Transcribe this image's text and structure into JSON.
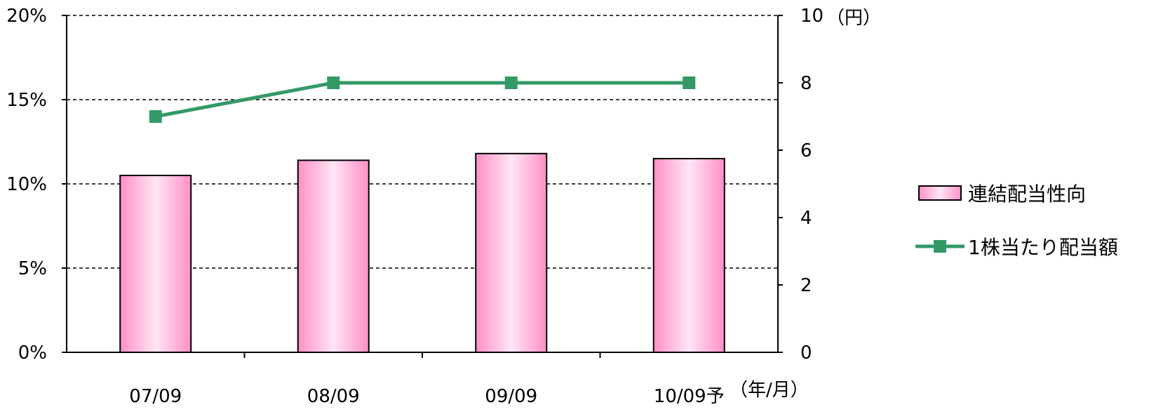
{
  "chart_data": {
    "type": "bar",
    "categories": [
      "07/09",
      "08/09",
      "09/09",
      "10/09予"
    ],
    "series": [
      {
        "name": "連結配当性向",
        "type": "bar",
        "axis": "left",
        "values": [
          10.5,
          11.4,
          11.8,
          11.5
        ],
        "color": "#ff99cc"
      },
      {
        "name": "1株当たり配当額",
        "type": "line",
        "axis": "right",
        "values": [
          7,
          8,
          8,
          8
        ],
        "color": "#339966"
      }
    ],
    "y_left": {
      "min": 0,
      "max": 20,
      "ticks": [
        "0%",
        "5%",
        "10%",
        "15%",
        "20%"
      ]
    },
    "y_right": {
      "min": 0,
      "max": 10,
      "ticks": [
        "0",
        "2",
        "4",
        "6",
        "8",
        "10"
      ],
      "unit": "（円）"
    },
    "x_unit": "（年/月）",
    "grid": "dashed horizontal",
    "legend_position": "right"
  }
}
